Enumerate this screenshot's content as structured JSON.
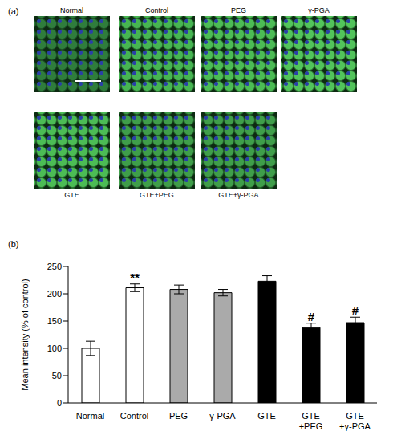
{
  "image_panel": {
    "label": "(a)",
    "tiles": [
      "Normal",
      "Control",
      "PEG",
      "γ-PGA",
      "GTE",
      "GTE+PEG",
      "GTE+γ-PGA"
    ]
  },
  "chart_data": {
    "type": "bar",
    "panel_label": "(b)",
    "y_label": "Mean intensity (% of control)",
    "categories": [
      "Normal",
      "Control",
      "PEG",
      "γ-PGA",
      "GTE",
      "GTE+PEG",
      "GTE+γ-PGA"
    ],
    "values": [
      100,
      211,
      208,
      202,
      223,
      138,
      147
    ],
    "errors": [
      13,
      7,
      8,
      6,
      10,
      8,
      10
    ],
    "colors": [
      "#ffffff",
      "#ffffff",
      "#aaaaaa",
      "#aaaaaa",
      "#000000",
      "#000000",
      "#000000"
    ],
    "ylim": [
      0,
      250
    ],
    "yticks": [
      0,
      50,
      100,
      150,
      200,
      250
    ],
    "annotations": [
      {
        "category": "Control",
        "text": "**"
      },
      {
        "category": "GTE+PEG",
        "text": "#"
      },
      {
        "category": "GTE+γ-PGA",
        "text": "#"
      }
    ]
  }
}
